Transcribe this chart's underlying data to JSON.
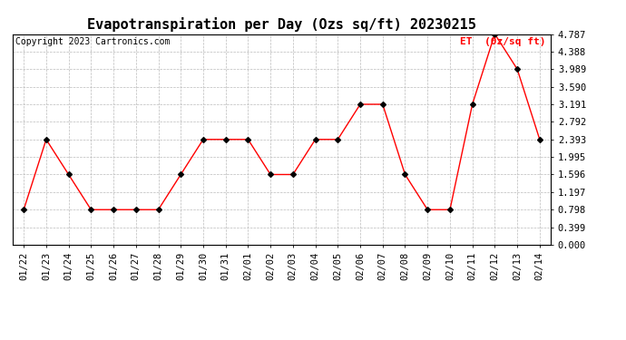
{
  "title": "Evapotranspiration per Day (Ozs sq/ft) 20230215",
  "copyright": "Copyright 2023 Cartronics.com",
  "legend_label": "ET  (0z/sq ft)",
  "dates": [
    "01/22",
    "01/23",
    "01/24",
    "01/25",
    "01/26",
    "01/27",
    "01/28",
    "01/29",
    "01/30",
    "01/31",
    "02/01",
    "02/02",
    "02/03",
    "02/04",
    "02/05",
    "02/06",
    "02/07",
    "02/08",
    "02/09",
    "02/10",
    "02/11",
    "02/12",
    "02/13",
    "02/14"
  ],
  "values": [
    0.798,
    2.393,
    1.596,
    0.798,
    0.798,
    0.798,
    0.798,
    1.596,
    2.393,
    2.393,
    2.393,
    1.596,
    1.596,
    2.393,
    2.393,
    3.191,
    3.191,
    1.596,
    0.798,
    0.798,
    3.191,
    4.787,
    3.989,
    2.393
  ],
  "line_color": "#ff0000",
  "marker_color": "#000000",
  "title_color": "#000000",
  "copyright_color": "#000000",
  "legend_color": "#ff0000",
  "grid_color": "#bbbbbb",
  "background_color": "#ffffff",
  "ylim": [
    0.0,
    4.787
  ],
  "yticks": [
    0.0,
    0.399,
    0.798,
    1.197,
    1.596,
    1.995,
    2.393,
    2.792,
    3.191,
    3.59,
    3.989,
    4.388,
    4.787
  ],
  "title_fontsize": 11,
  "copyright_fontsize": 7,
  "legend_fontsize": 8,
  "tick_fontsize": 7.5
}
